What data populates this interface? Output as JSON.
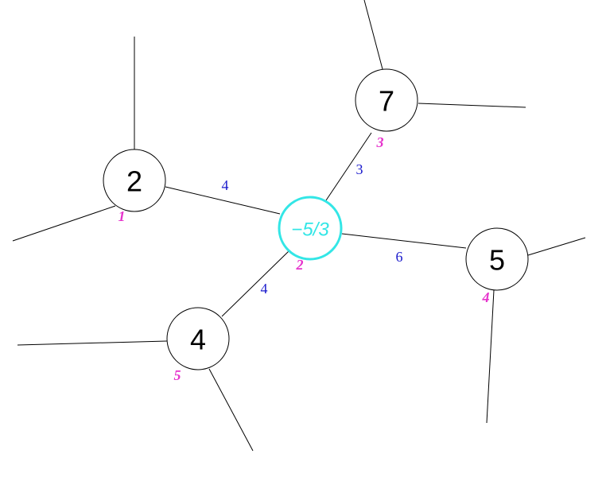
{
  "colors": {
    "center": "#33e6e6",
    "weight": "#1a1acc",
    "index": "#e633cc",
    "line": "#000000"
  },
  "center": {
    "value": "−5/3",
    "index": "2"
  },
  "nodes": [
    {
      "id": "n2",
      "value": "2",
      "index": "1",
      "weight": "4"
    },
    {
      "id": "n7",
      "value": "7",
      "index": "3",
      "weight": "3"
    },
    {
      "id": "n5",
      "value": "5",
      "index": "4",
      "weight": "6"
    },
    {
      "id": "n4",
      "value": "4",
      "index": "5",
      "weight": "4"
    }
  ]
}
